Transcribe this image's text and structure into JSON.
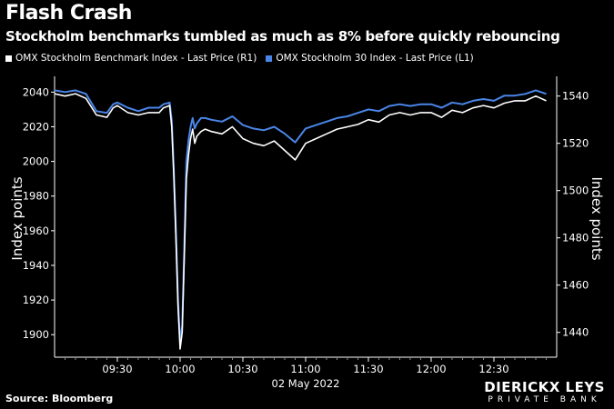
{
  "title": "Flash Crash",
  "subtitle": "Stockholm benchmarks tumbled as much as 8% before quickly rebouncing",
  "legend": [
    {
      "label": "OMX Stockholm Benchmark Index - Last Price (R1)",
      "color": "#ffffff"
    },
    {
      "label": "OMX Stockholm 30 Index - Last Price (L1)",
      "color": "#4a86e8"
    }
  ],
  "source": "Source: Bloomberg",
  "brand": {
    "line1": "DIERICKX LEYS",
    "line2": "PRIVATE BANK"
  },
  "chart_data": {
    "type": "line",
    "x_ticks": [
      "09:30",
      "10:00",
      "10:30",
      "11:00",
      "11:30",
      "12:00",
      "12:30"
    ],
    "xlabel": "02 May 2022",
    "x_range_min": [
      0,
      240
    ],
    "left_axis": {
      "label": "Index points",
      "ticks": [
        1900,
        1920,
        1940,
        1960,
        1980,
        2000,
        2020,
        2040
      ],
      "range": [
        1887,
        2047
      ]
    },
    "right_axis": {
      "label": "Index points",
      "ticks": [
        1440,
        1460,
        1480,
        1500,
        1520,
        1540
      ],
      "range": [
        1429.5,
        1546.8
      ]
    },
    "series": [
      {
        "name": "OMX Stockholm 30 Index - Last Price (L1)",
        "axis": "left",
        "color": "#4a86e8",
        "x": [
          0,
          5,
          10,
          15,
          20,
          25,
          28,
          30,
          35,
          40,
          45,
          50,
          52,
          55,
          56,
          57,
          58,
          59,
          60,
          61,
          62,
          63,
          64,
          65,
          66,
          67,
          68,
          70,
          72,
          75,
          80,
          85,
          90,
          95,
          100,
          105,
          110,
          115,
          120,
          125,
          130,
          135,
          140,
          145,
          150,
          155,
          160,
          165,
          170,
          175,
          180,
          185,
          190,
          195,
          200,
          205,
          210,
          215,
          220,
          225,
          230,
          235
        ],
        "values": [
          2041,
          2040,
          2041,
          2039,
          2029,
          2028,
          2033,
          2034,
          2031,
          2029,
          2031,
          2031,
          2033,
          2034,
          2024,
          1995,
          1960,
          1920,
          1896,
          1905,
          1950,
          2000,
          2012,
          2020,
          2025,
          2019,
          2022,
          2025,
          2025,
          2024,
          2023,
          2026,
          2021,
          2019,
          2018,
          2020,
          2016,
          2011,
          2019,
          2021,
          2023,
          2025,
          2026,
          2028,
          2030,
          2029,
          2032,
          2033,
          2032,
          2033,
          2033,
          2031,
          2034,
          2033,
          2035,
          2036,
          2035,
          2038,
          2038,
          2039,
          2041,
          2039
        ]
      },
      {
        "name": "OMX Stockholm Benchmark Index - Last Price (R1)",
        "axis": "right",
        "color": "#ffffff",
        "x": [
          0,
          5,
          10,
          15,
          20,
          25,
          28,
          30,
          35,
          40,
          45,
          50,
          52,
          55,
          56,
          57,
          58,
          59,
          60,
          61,
          62,
          63,
          64,
          65,
          66,
          67,
          68,
          70,
          72,
          75,
          80,
          85,
          90,
          95,
          100,
          105,
          110,
          115,
          120,
          125,
          130,
          135,
          140,
          145,
          150,
          155,
          160,
          165,
          170,
          175,
          180,
          185,
          190,
          195,
          200,
          205,
          210,
          215,
          220,
          225,
          230,
          235
        ],
        "values": [
          1541,
          1540,
          1541,
          1539,
          1532,
          1531,
          1535,
          1536,
          1533,
          1532,
          1533,
          1533,
          1535,
          1536,
          1527,
          1506,
          1480,
          1451,
          1433,
          1440,
          1472,
          1505,
          1515,
          1522,
          1526,
          1520,
          1523,
          1525,
          1526,
          1525,
          1524,
          1527,
          1522,
          1520,
          1519,
          1521,
          1517,
          1513,
          1520,
          1522,
          1524,
          1526,
          1527,
          1528,
          1530,
          1529,
          1532,
          1533,
          1532,
          1533,
          1533,
          1531,
          1534,
          1533,
          1535,
          1536,
          1535,
          1537,
          1538,
          1538,
          1540,
          1538
        ]
      }
    ]
  }
}
